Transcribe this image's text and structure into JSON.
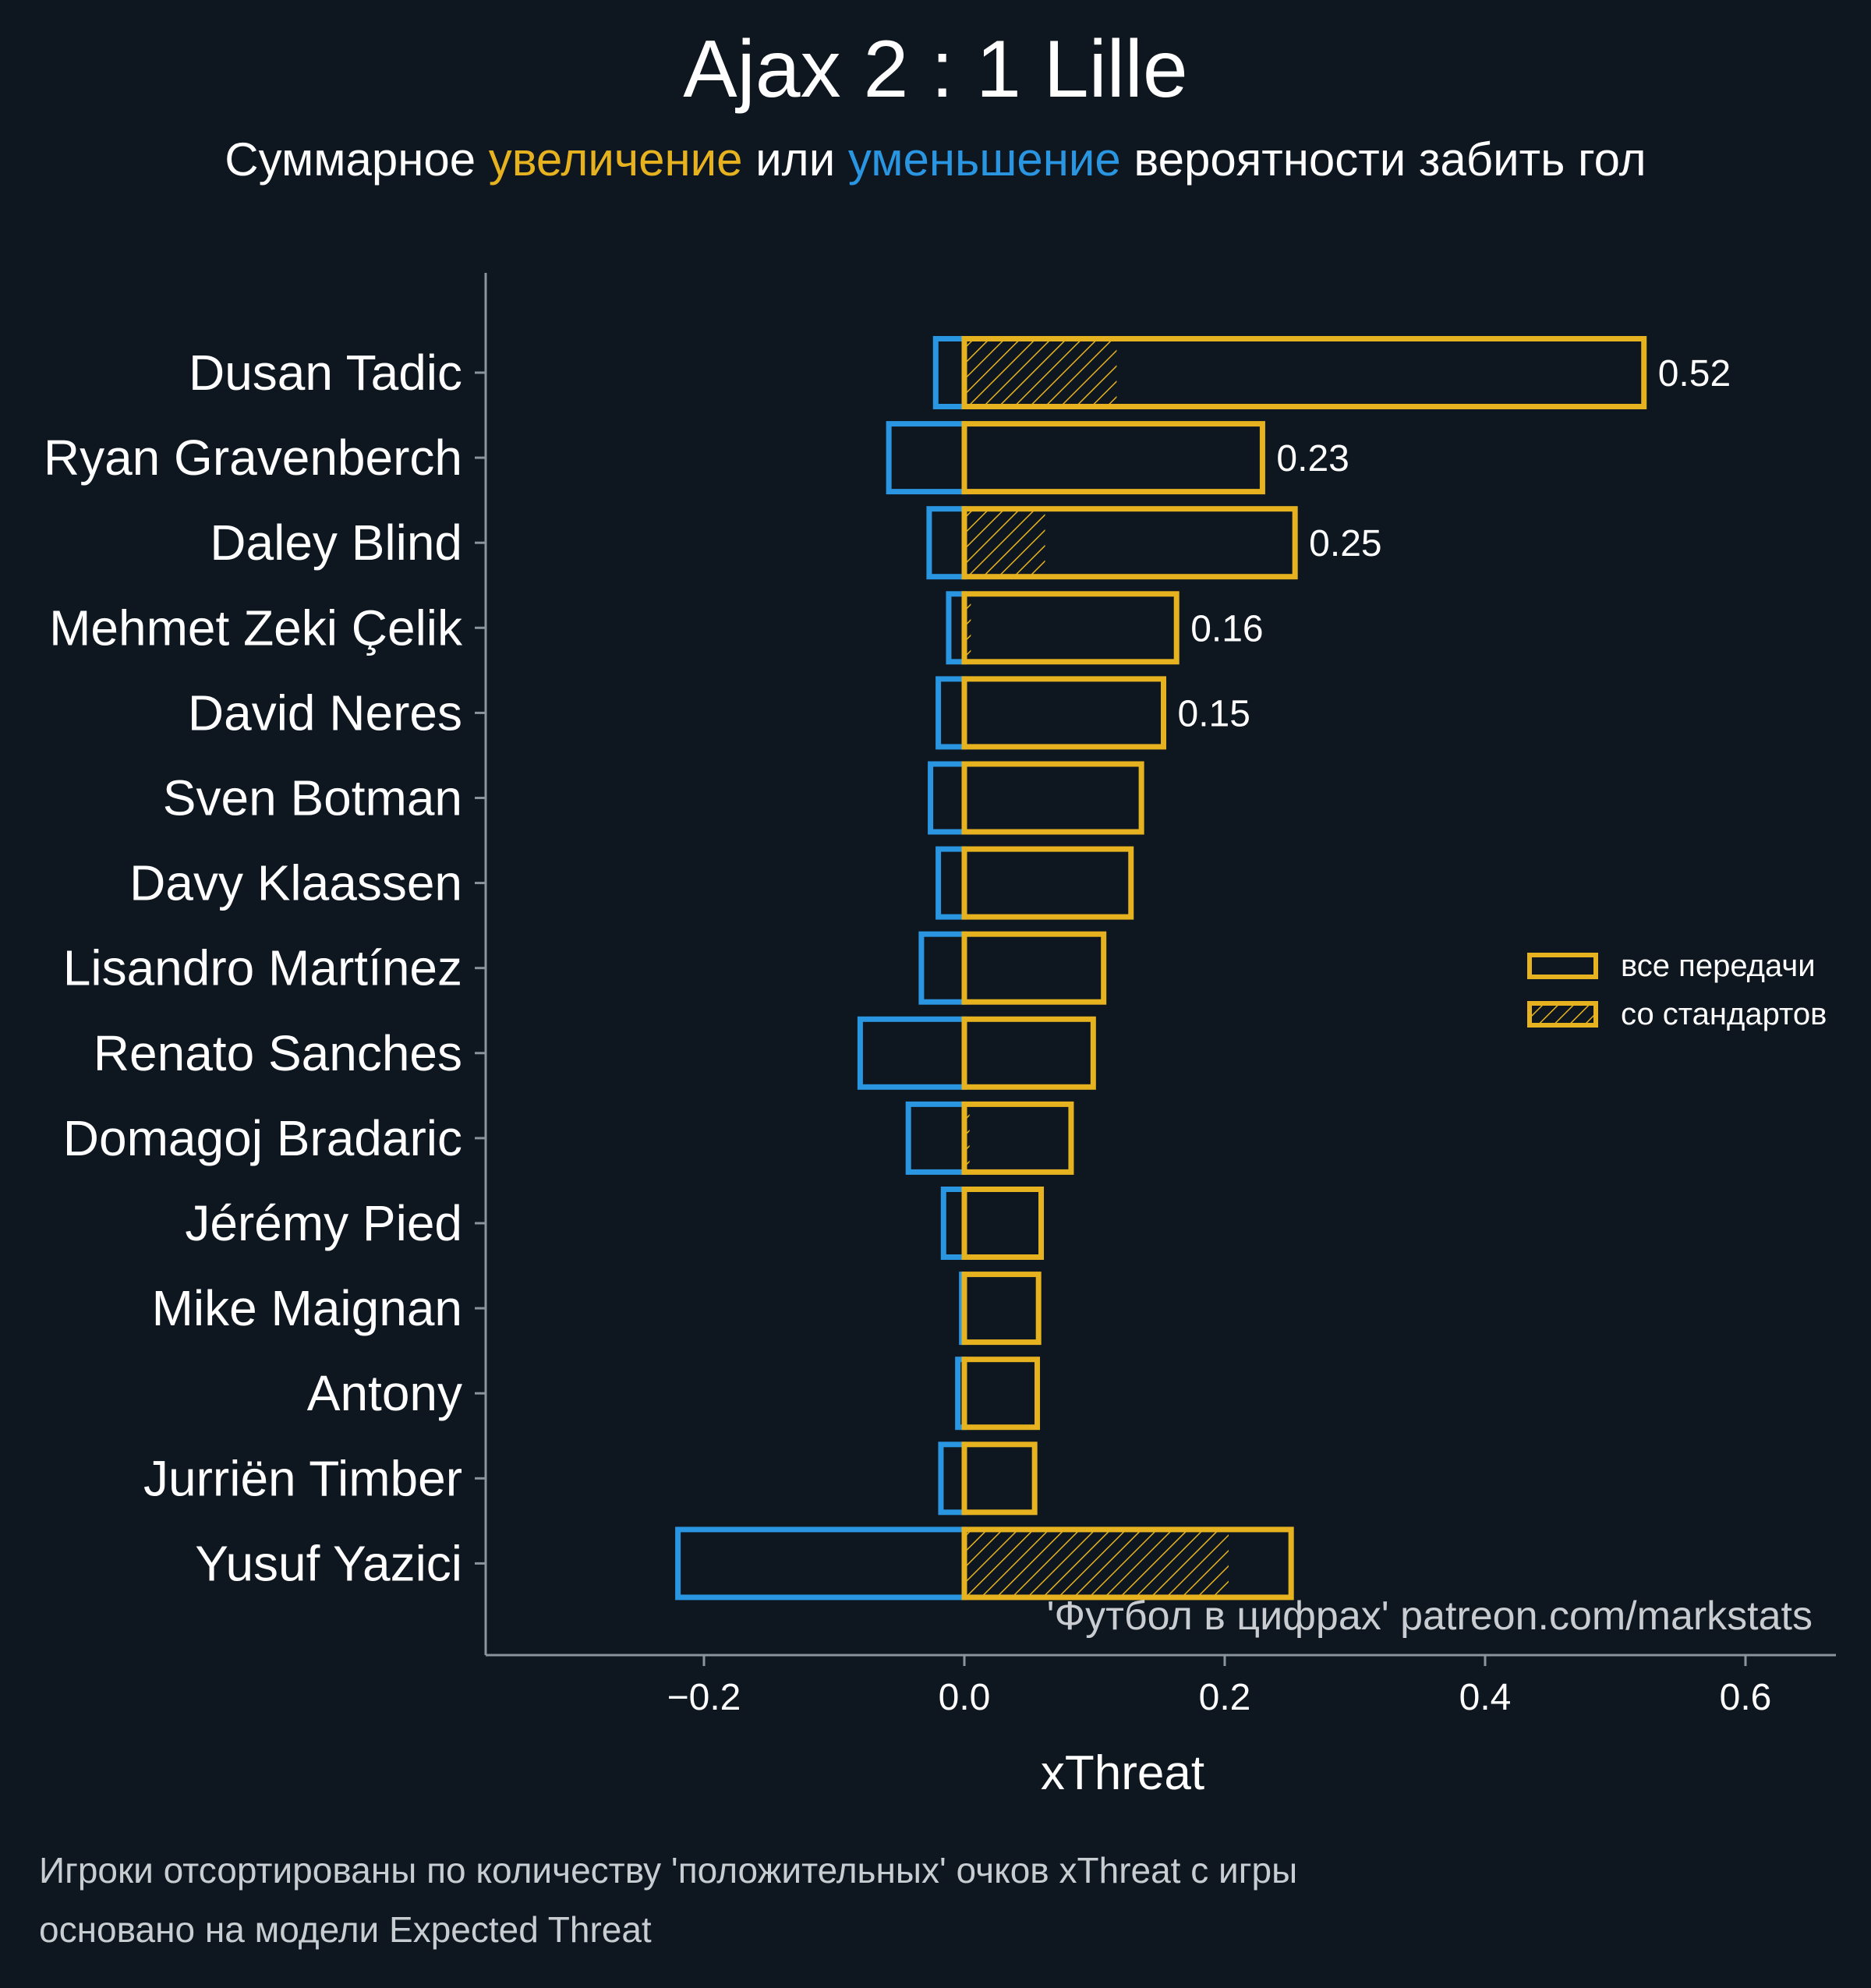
{
  "title": "Ajax 2 : 1 Lille",
  "subtitle": {
    "before": "Суммарное ",
    "positive": "увеличение",
    "middle": " или ",
    "negative": "уменьшение",
    "after": " вероятности забить гол"
  },
  "watermark": "'Футбол в цифрах' patreon.com/markstats",
  "notes": [
    "Игроки отсортированы по количеству 'положительных' очков xThreat с игры",
    "основано на модели Expected Threat"
  ],
  "colors": {
    "background": "#0e1720",
    "positive": "#e6b21f",
    "negative": "#2a95e0",
    "axis": "#8a949c",
    "text": "#ffffff",
    "watermark": "#c9cdd1"
  },
  "chart_data": {
    "type": "bar",
    "orientation": "horizontal",
    "xlabel": "xThreat",
    "xlim": [
      -0.37,
      0.67
    ],
    "xticks": [
      -0.2,
      0.0,
      0.2,
      0.4,
      0.6
    ],
    "xtick_labels": [
      "−0.2",
      "0.0",
      "0.2",
      "0.4",
      "0.6"
    ],
    "grid": false,
    "legend_position": "right",
    "legend": [
      {
        "label": "все передачи",
        "style": "outline"
      },
      {
        "label": "со стандартов",
        "style": "hatched"
      }
    ],
    "categories": [
      "Dusan Tadic",
      "Ryan Gravenberch",
      "Daley Blind",
      "Mehmet Zeki Çelik",
      "David Neres",
      "Sven Botman",
      "Davy Klaassen",
      "Lisandro Martínez",
      "Renato Sanches",
      "Domagoj Bradaric",
      "Jérémy Pied",
      "Mike Maignan",
      "Antony",
      "Jurriën Timber",
      "Yusuf Yazici"
    ],
    "series": [
      {
        "name": "все передачи",
        "role": "positive",
        "values": [
          0.522,
          0.229,
          0.254,
          0.163,
          0.153,
          0.136,
          0.128,
          0.107,
          0.099,
          0.082,
          0.059,
          0.057,
          0.056,
          0.054,
          0.251
        ]
      },
      {
        "name": "со стандартов",
        "role": "positive_set_pieces",
        "values": [
          0.117,
          0.0,
          0.062,
          0.005,
          0.0,
          0.0,
          0.0,
          0.0,
          0.0,
          0.004,
          0.0,
          0.0,
          0.0,
          0.0,
          0.203
        ]
      },
      {
        "role": "negative",
        "values": [
          -0.022,
          -0.058,
          -0.027,
          -0.012,
          -0.02,
          -0.026,
          -0.02,
          -0.033,
          -0.08,
          -0.043,
          -0.016,
          -0.002,
          -0.005,
          -0.018,
          -0.22
        ]
      }
    ],
    "data_labels": [
      "0.52",
      "0.23",
      "0.25",
      "0.16",
      "0.15",
      "",
      "",
      "",
      "",
      "",
      "",
      "",
      "",
      "",
      ""
    ]
  }
}
